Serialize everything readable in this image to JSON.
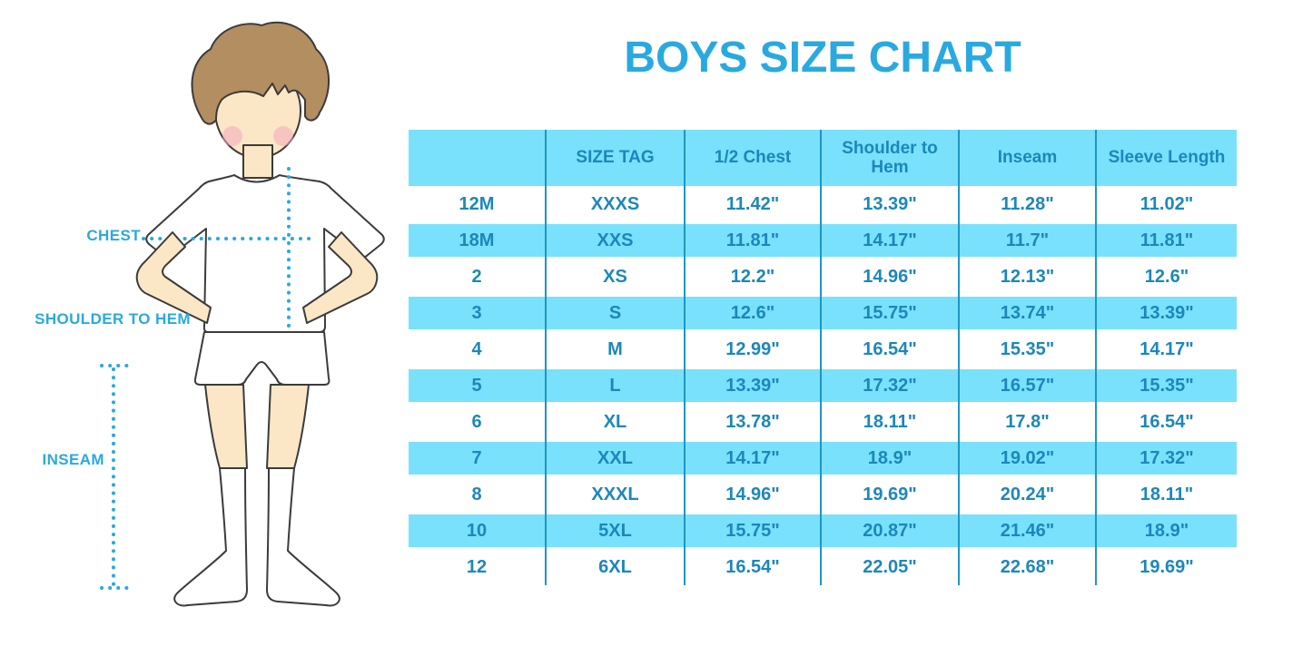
{
  "title": "BOYS SIZE CHART",
  "figure": {
    "labels": {
      "chest": "CHEST",
      "shoulder_to_hem": "SHOULDER TO HEM",
      "inseam": "INSEAM"
    }
  },
  "table": {
    "columns": [
      "",
      "SIZE TAG",
      "1/2 Chest",
      "Shoulder to Hem",
      "Inseam",
      "Sleeve Length"
    ],
    "rows": [
      [
        "12M",
        "XXXS",
        "11.42\"",
        "13.39\"",
        "11.28\"",
        "11.02\""
      ],
      [
        "18M",
        "XXS",
        "11.81\"",
        "14.17\"",
        "11.7\"",
        "11.81\""
      ],
      [
        "2",
        "XS",
        "12.2\"",
        "14.96\"",
        "12.13\"",
        "12.6\""
      ],
      [
        "3",
        "S",
        "12.6\"",
        "15.75\"",
        "13.74\"",
        "13.39\""
      ],
      [
        "4",
        "M",
        "12.99\"",
        "16.54\"",
        "15.35\"",
        "14.17\""
      ],
      [
        "5",
        "L",
        "13.39\"",
        "17.32\"",
        "16.57\"",
        "15.35\""
      ],
      [
        "6",
        "XL",
        "13.78\"",
        "18.11\"",
        "17.8\"",
        "16.54\""
      ],
      [
        "7",
        "XXL",
        "14.17\"",
        "18.9\"",
        "19.02\"",
        "17.32\""
      ],
      [
        "8",
        "XXXL",
        "14.96\"",
        "19.69\"",
        "20.24\"",
        "18.11\""
      ],
      [
        "10",
        "5XL",
        "15.75\"",
        "20.87\"",
        "21.46\"",
        "18.9\""
      ],
      [
        "12",
        "6XL",
        "16.54\"",
        "22.05\"",
        "22.68\"",
        "19.69\""
      ]
    ],
    "shaded_row_indices": [
      1,
      3,
      5,
      7,
      9
    ]
  },
  "colors": {
    "accent_blue": "#29A9E0",
    "table_text": "#1C87BC",
    "band_cyan": "#79E1FB",
    "separator": "#1E95C9",
    "skin": "#FBE7C5",
    "hair": "#B28E60",
    "blush": "#F2A9BD",
    "outline": "#3B3B3B"
  }
}
